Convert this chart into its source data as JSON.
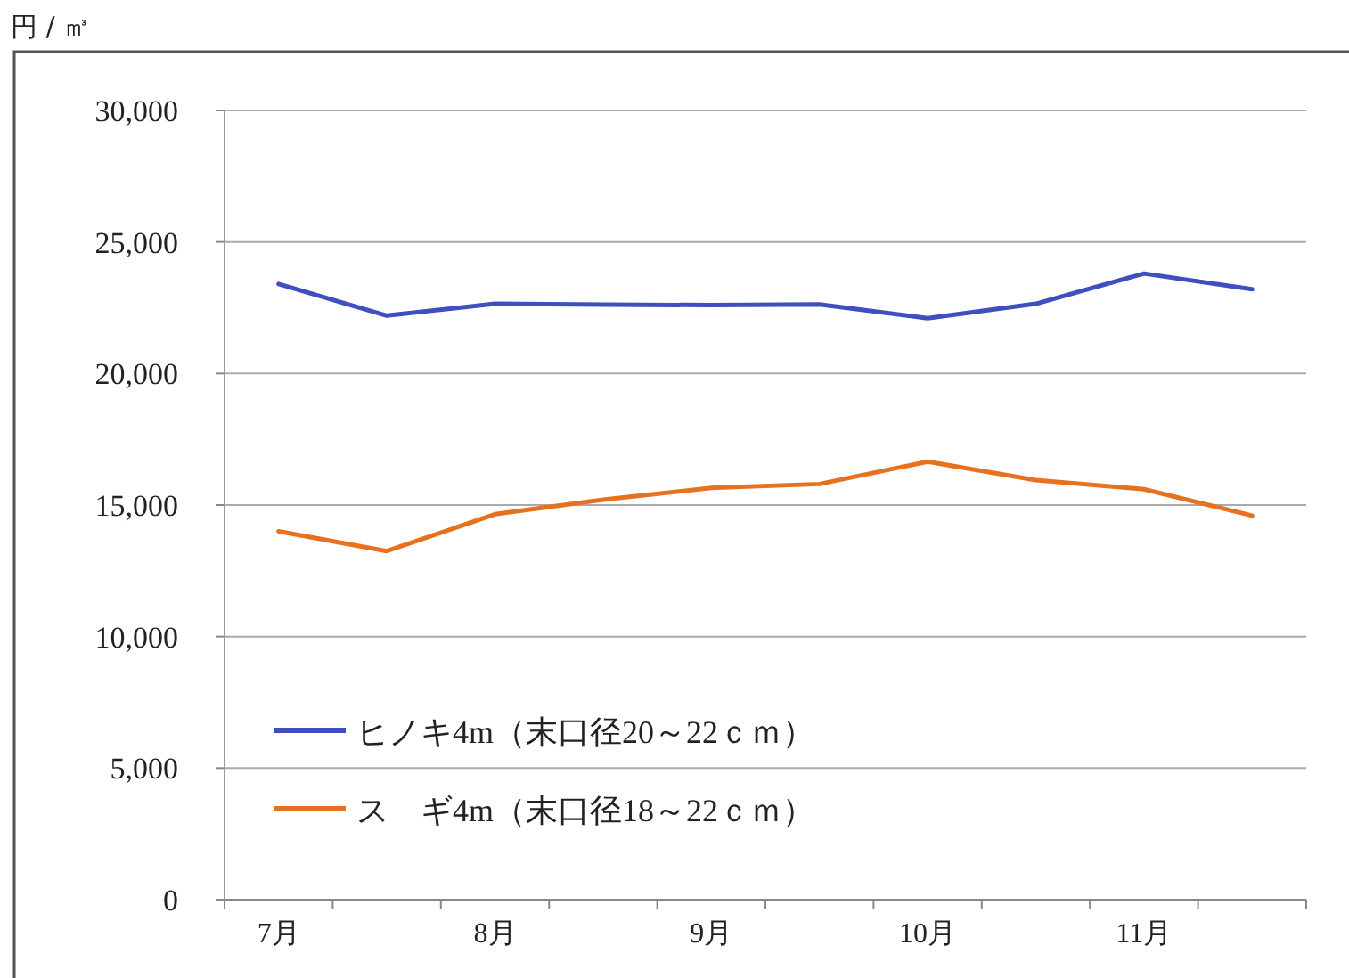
{
  "chart_data": {
    "type": "line",
    "ylabel": "円 / ㎥",
    "categories": [
      "7月",
      null,
      "8月",
      null,
      "9月",
      null,
      "10月",
      null,
      "11月",
      null
    ],
    "series": [
      {
        "name": "ヒノキ4m（末口径20～22ｃｍ）",
        "color": "#3f4fbf",
        "values": [
          23400,
          22200,
          22650,
          22620,
          22600,
          22630,
          22100,
          22650,
          23800,
          23200
        ]
      },
      {
        "name": "ス　ギ4m（末口径18～22ｃｍ）",
        "color": "#e8711f",
        "values": [
          14000,
          13250,
          14650,
          15200,
          15650,
          15800,
          16650,
          15950,
          15600,
          14600
        ]
      }
    ],
    "ylim": [
      0,
      30000
    ],
    "yticks": [
      0,
      {
        "value": 5000,
        "label": "5,000"
      },
      {
        "value": 10000,
        "label": "10,000"
      },
      {
        "value": 15000,
        "label": "15,000"
      },
      {
        "value": 20000,
        "label": "20,000"
      },
      {
        "value": 25000,
        "label": "25,000"
      },
      {
        "value": 30000,
        "label": "30,000"
      }
    ],
    "grid": "y",
    "legend": "bottom left",
    "marker": "none",
    "line_style": "solid"
  }
}
